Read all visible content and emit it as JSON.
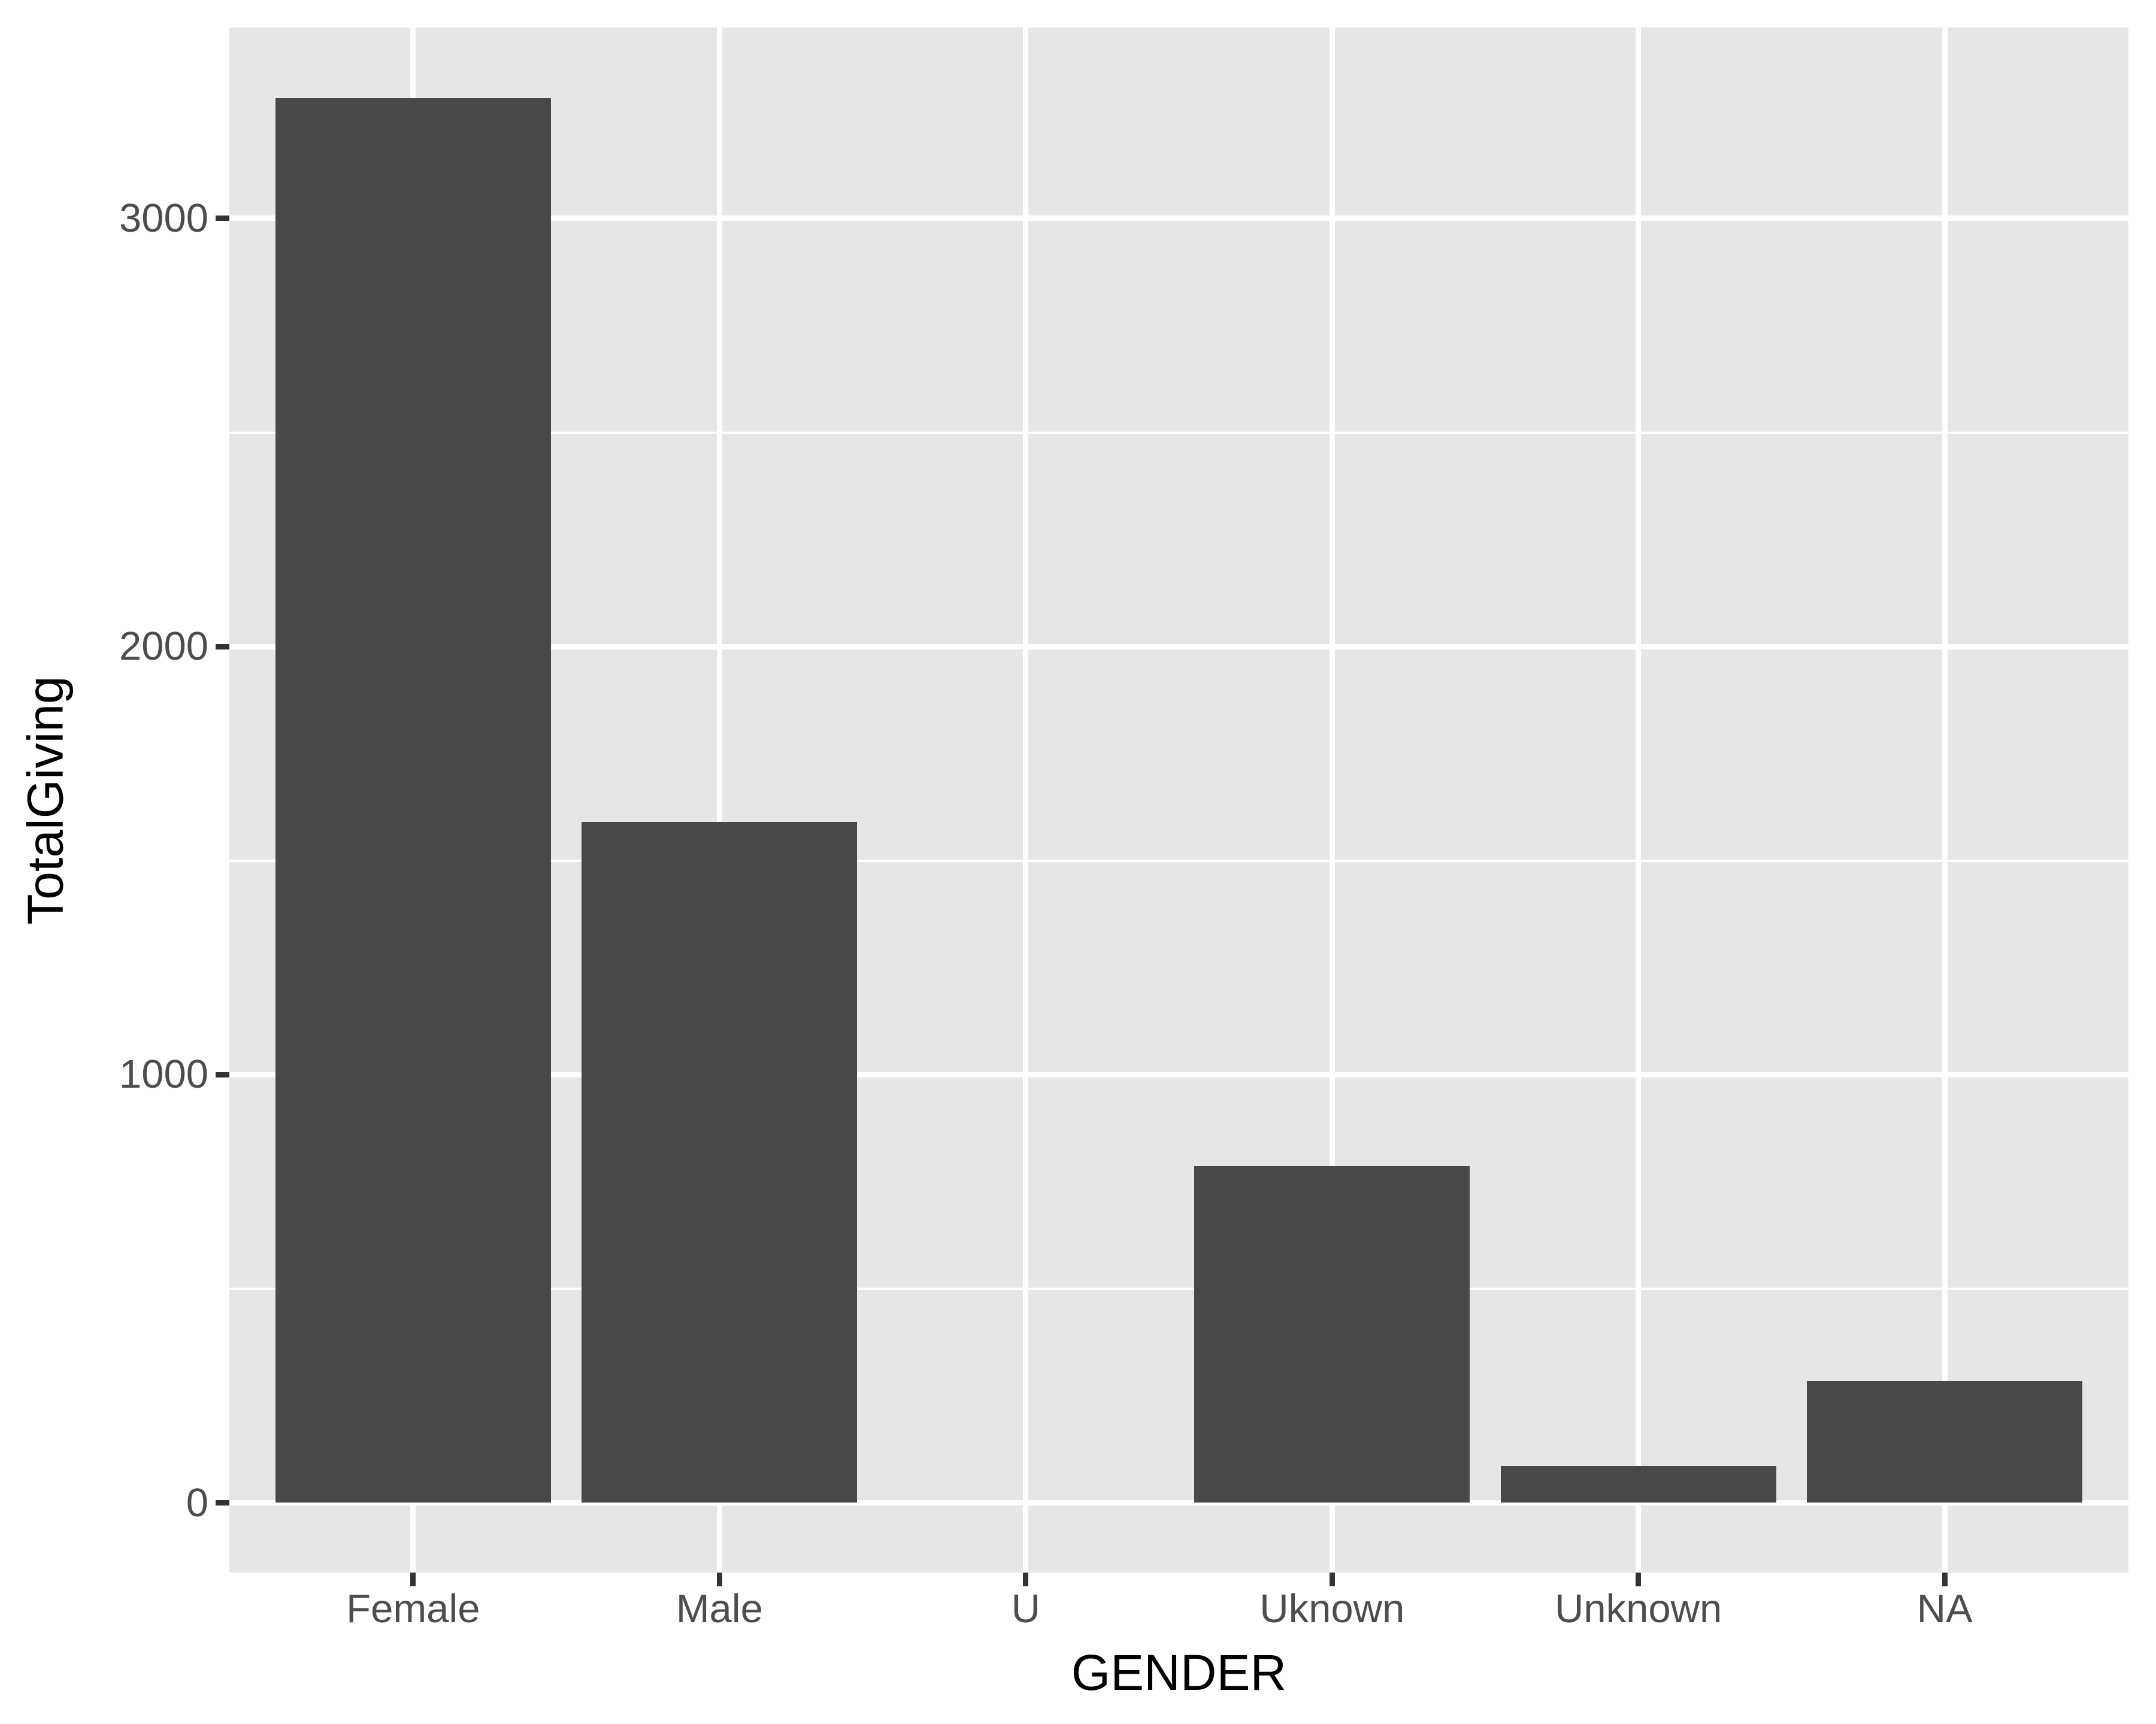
{
  "chart_data": {
    "type": "bar",
    "title": "",
    "xlabel": "GENDER",
    "ylabel": "TotalGiving",
    "categories": [
      "Female",
      "Male",
      "U",
      "Uknown",
      "Unknown",
      "NA"
    ],
    "values": [
      3281,
      1590,
      0,
      787,
      86,
      285
    ],
    "y_major_ticks": [
      0,
      1000,
      2000,
      3000
    ],
    "y_minor_ticks": [
      500,
      1500,
      2500
    ],
    "ylim": [
      -164,
      3445
    ],
    "xlim_slots": 6.2,
    "bar_width_ratio": 0.9,
    "grid": true,
    "legend": "none",
    "colors": {
      "bar_fill": "#484848",
      "panel_bg": "#E6E6E6",
      "grid": "#FFFFFF",
      "tick_label": "#4D4D4D",
      "axis_title": "#000000",
      "tick_mark": "#333333",
      "figure_bg": "#FFFFFF"
    }
  }
}
